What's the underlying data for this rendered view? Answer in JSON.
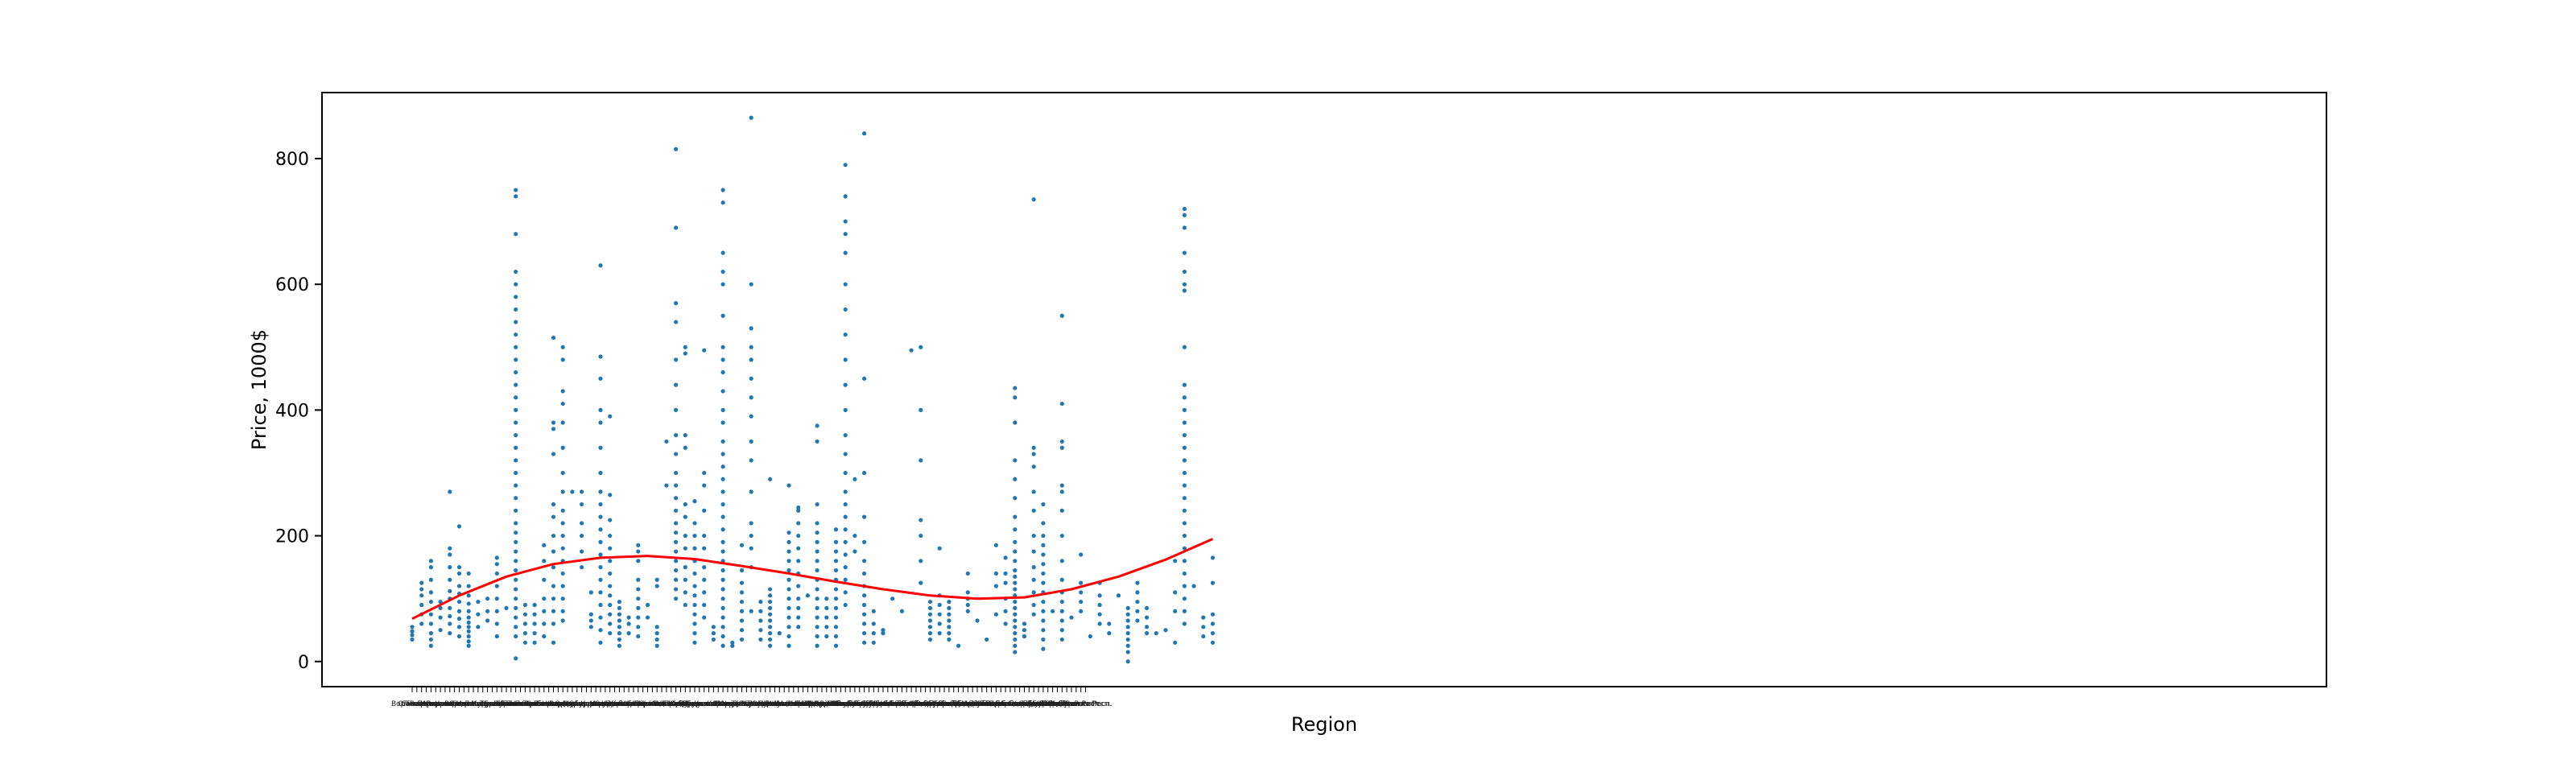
{
  "chart_data": {
    "type": "scatter",
    "title": "",
    "xlabel": "Region",
    "ylabel": "Price, 1000$",
    "ylim": [
      -40,
      905
    ],
    "yticks": [
      0,
      200,
      400,
      600,
      800
    ],
    "grid": false,
    "legend": "none",
    "point_color": "#1f77b4",
    "trend_color": "#ff0000",
    "category_labels": [
      "Омская",
      "Воронежская",
      "Самарская",
      "Тюменская",
      "Ростовская",
      "Пермская",
      "Иркутская",
      "Кемеровская",
      "Саратовская",
      "Волгоградская",
      "Ульяновская",
      "Рязанская",
      "Тверская",
      "Ярославская",
      "Московская",
      "Липецкая",
      "Курская",
      "Калужская",
      "Тульская",
      "Брянская",
      "Челябинская",
      "Томская",
      "Курганская",
      "Ивановская",
      "Пензенская",
      "Тамбовская",
      "Псковская",
      "Новосибирская",
      "Орловская",
      "Смоленская",
      "Архангельская",
      "Вологодская",
      "Белгородская",
      "Кировская",
      "Нижегородская",
      "Владимирская",
      "Оренбургская",
      "Мурманская",
      "Ленинградская",
      "Свердловская",
      "Астраханская",
      "Костромская",
      "Амурская",
      "Магаданская",
      "Сахалинская",
      "Камчатский",
      "Приморский",
      "Хабаровский",
      "Красноярский",
      "Алтайский",
      "Забайкальский",
      "Пермский",
      "Ставропольский",
      "Краснодарский",
      "Москва",
      "Санкт-Петербург",
      "Севастополь",
      "Крым",
      "Адыгея",
      "Башкортостан",
      "Бурятия",
      "Дагестан",
      "Ингушетия",
      "Кабардино-Балкария",
      "Калмыкия",
      "Карачаево-Черкесия",
      "Карелия",
      "Коми",
      "Марий Эл",
      "Мордовия",
      "Саха (Якутия)",
      "Северная Осетия",
      "Татарстан",
      "Тыва",
      "Удмуртия",
      "Хакасия",
      "Чечня",
      "Чувашия",
      "Алтай",
      "Еврейская АО",
      "Ненецкий АО",
      "Ханты-Мансийский АО",
      "Чукотский АО",
      "Ямало-Ненецкий АО",
      "Калининградская",
      "Новгородская",
      "Кировская обл.",
      "Тверская обл.",
      "Пензенская обл.",
      "Липецкая обл.",
      "Рязанская обл.",
      "Брянская обл.",
      "Курганская обл.",
      "Омская обл.",
      "Томская обл.",
      "Амурская обл.",
      "Ивановская обл.",
      "Владимирская обл.",
      "Тульская обл.",
      "Калужская обл.",
      "Орловская обл.",
      "Курская обл.",
      "Смоленская обл.",
      "Псковская обл.",
      "Мурманская обл.",
      "Вологодская обл.",
      "Костромская обл.",
      "Ярославская обл.",
      "Тамбовская обл.",
      "Белгородская обл.",
      "Саратовская обл.",
      "Ульяновская обл.",
      "Самарская обл.",
      "Оренбургская обл.",
      "Астраханская обл.",
      "Волгоградская обл.",
      "Воронежская обл.",
      "Ростовская обл.",
      "Нижегородская обл.",
      "Челябинская обл.",
      "Свердловская обл.",
      "Тюменская обл.",
      "Кемеровская обл.",
      "Иркутская обл.",
      "Новосибирская обл.",
      "Архангельская обл.",
      "Магаданская обл.",
      "Сахалинская обл.",
      "Ленинградская обл.",
      "Московская обл.",
      "Еврейская АО обл.",
      "Калининградская обл.",
      "Новгородская обл.",
      "Хакасия Респ.",
      "Якутия Респ.",
      "Тыва Респ.",
      "Удмуртия Респ.",
      "Чувашия Респ.",
      "Коми Респ.",
      "Карелия Респ.",
      "Мордовия Респ.",
      "Адыгея Респ.",
      "Калмыкия Респ.",
      "Бурятия Респ."
    ],
    "columns": [
      {
        "i": 0,
        "y": [
          35,
          42,
          48,
          55
        ]
      },
      {
        "i": 2,
        "y": [
          60,
          75,
          90,
          105,
          115,
          125
        ]
      },
      {
        "i": 4,
        "y": [
          25,
          35,
          45,
          60,
          75,
          95,
          110,
          130,
          150,
          160
        ]
      },
      {
        "i": 6,
        "y": [
          50,
          70,
          85,
          95
        ]
      },
      {
        "i": 8,
        "y": [
          45,
          60,
          72,
          85,
          100,
          112,
          130,
          150,
          170,
          180,
          270
        ]
      },
      {
        "i": 10,
        "y": [
          40,
          55,
          68,
          80,
          95,
          108,
          120,
          140,
          150,
          215
        ]
      },
      {
        "i": 12,
        "y": [
          25,
          32,
          40,
          48,
          55,
          62,
          70,
          80,
          92,
          105,
          120,
          140
        ]
      },
      {
        "i": 14,
        "y": [
          55,
          75,
          95
        ]
      },
      {
        "i": 16,
        "y": [
          65,
          80,
          100
        ]
      },
      {
        "i": 18,
        "y": [
          40,
          60,
          80,
          100,
          120,
          140,
          155,
          165
        ]
      },
      {
        "i": 20,
        "y": [
          85
        ]
      },
      {
        "i": 22,
        "y": [
          5,
          40,
          55,
          70,
          85,
          100,
          115,
          130,
          145,
          160,
          175,
          190,
          205,
          220,
          240,
          260,
          280,
          300,
          320,
          340,
          360,
          380,
          400,
          420,
          440,
          460,
          480,
          500,
          520,
          540,
          560,
          580,
          600,
          620,
          680,
          740,
          750
        ]
      },
      {
        "i": 24,
        "y": [
          30,
          45,
          60,
          75,
          90
        ]
      },
      {
        "i": 26,
        "y": [
          30,
          45,
          60,
          75,
          90
        ]
      },
      {
        "i": 28,
        "y": [
          40,
          60,
          80,
          100,
          130,
          160,
          185
        ]
      },
      {
        "i": 30,
        "y": [
          30,
          60,
          80,
          100,
          120,
          150,
          175,
          200,
          230,
          250,
          330,
          370,
          380,
          515
        ]
      },
      {
        "i": 32,
        "y": [
          65,
          80,
          100,
          120,
          140,
          160,
          180,
          200,
          220,
          240,
          270,
          300,
          340,
          380,
          410,
          430,
          480,
          500
        ]
      },
      {
        "i": 34,
        "y": [
          270
        ]
      },
      {
        "i": 36,
        "y": [
          150,
          175,
          200,
          220,
          250,
          270
        ]
      },
      {
        "i": 38,
        "y": [
          55,
          65,
          75,
          110
        ]
      },
      {
        "i": 40,
        "y": [
          30,
          50,
          70,
          90,
          110,
          130,
          150,
          170,
          190,
          210,
          230,
          250,
          270,
          300,
          340,
          380,
          400,
          450,
          485,
          630
        ]
      },
      {
        "i": 42,
        "y": [
          45,
          60,
          75,
          90,
          105,
          120,
          140,
          160,
          180,
          200,
          225,
          265,
          390
        ]
      },
      {
        "i": 44,
        "y": [
          25,
          35,
          45,
          55,
          65,
          75,
          85,
          95
        ]
      },
      {
        "i": 46,
        "y": [
          45,
          60,
          70
        ]
      },
      {
        "i": 48,
        "y": [
          40,
          55,
          70,
          85,
          100,
          115,
          130,
          160,
          175,
          185
        ]
      },
      {
        "i": 50,
        "y": [
          70,
          90
        ]
      },
      {
        "i": 52,
        "y": [
          25,
          35,
          45,
          55,
          120,
          130
        ]
      },
      {
        "i": 54,
        "y": [
          280,
          350
        ]
      },
      {
        "i": 56,
        "y": [
          100,
          115,
          130,
          145,
          160,
          175,
          190,
          205,
          220,
          240,
          260,
          280,
          300,
          330,
          360,
          400,
          440,
          480,
          540,
          570,
          690,
          815
        ]
      },
      {
        "i": 58,
        "y": [
          90,
          110,
          130,
          150,
          180,
          200,
          230,
          250,
          340,
          360,
          490,
          500
        ]
      },
      {
        "i": 60,
        "y": [
          30,
          45,
          60,
          75,
          90,
          105,
          120,
          140,
          160,
          180,
          200,
          220,
          255
        ]
      },
      {
        "i": 62,
        "y": [
          70,
          90,
          110,
          130,
          150,
          180,
          200,
          240,
          280,
          300,
          495
        ]
      },
      {
        "i": 64,
        "y": [
          35,
          45,
          55
        ]
      },
      {
        "i": 66,
        "y": [
          25,
          40,
          55,
          70,
          85,
          100,
          115,
          130,
          145,
          160,
          175,
          190,
          210,
          230,
          250,
          270,
          290,
          310,
          330,
          350,
          380,
          400,
          430,
          460,
          480,
          500,
          550,
          600,
          620,
          650,
          730,
          750
        ]
      },
      {
        "i": 68,
        "y": [
          25,
          30
        ]
      },
      {
        "i": 70,
        "y": [
          35,
          50,
          65,
          80,
          95,
          110,
          125,
          145,
          185
        ]
      },
      {
        "i": 72,
        "y": [
          80,
          150,
          180,
          200,
          220,
          270,
          320,
          350,
          390,
          420,
          450,
          480,
          500,
          530,
          600,
          865
        ]
      },
      {
        "i": 74,
        "y": [
          35,
          50,
          65,
          80,
          95
        ]
      },
      {
        "i": 76,
        "y": [
          25,
          35,
          45,
          55,
          65,
          75,
          85,
          95,
          105,
          115,
          290
        ]
      },
      {
        "i": 78,
        "y": [
          45
        ]
      },
      {
        "i": 80,
        "y": [
          25,
          40,
          55,
          70,
          85,
          100,
          115,
          130,
          145,
          160,
          175,
          190,
          205,
          280
        ]
      },
      {
        "i": 82,
        "y": [
          55,
          70,
          85,
          100,
          120,
          140,
          160,
          180,
          200,
          220,
          240,
          245
        ]
      },
      {
        "i": 84,
        "y": [
          105
        ]
      },
      {
        "i": 86,
        "y": [
          25,
          40,
          55,
          70,
          85,
          100,
          115,
          130,
          145,
          160,
          175,
          190,
          205,
          220,
          250,
          350,
          375
        ]
      },
      {
        "i": 88,
        "y": [
          40,
          55,
          70,
          85,
          100
        ]
      },
      {
        "i": 90,
        "y": [
          25,
          40,
          55,
          70,
          85,
          100,
          115,
          130,
          145,
          160,
          175,
          190,
          210
        ]
      },
      {
        "i": 92,
        "y": [
          90,
          110,
          130,
          150,
          170,
          190,
          210,
          230,
          250,
          270,
          300,
          330,
          360,
          400,
          440,
          480,
          520,
          560,
          600,
          650,
          680,
          700,
          740,
          790
        ]
      },
      {
        "i": 94,
        "y": [
          175,
          200,
          290
        ]
      },
      {
        "i": 96,
        "y": [
          30,
          45,
          60,
          75,
          90,
          105,
          120,
          140,
          160,
          190,
          230,
          300,
          450,
          840
        ]
      },
      {
        "i": 98,
        "y": [
          30,
          45,
          60,
          80
        ]
      },
      {
        "i": 100,
        "y": [
          45,
          50
        ]
      },
      {
        "i": 102,
        "y": [
          100
        ]
      },
      {
        "i": 104,
        "y": [
          80
        ]
      },
      {
        "i": 106,
        "y": [
          495
        ]
      },
      {
        "i": 108,
        "y": [
          125,
          160,
          200,
          225,
          320,
          400,
          500
        ]
      },
      {
        "i": 110,
        "y": [
          35,
          45,
          55,
          65,
          75,
          85,
          95
        ]
      },
      {
        "i": 112,
        "y": [
          45,
          60,
          75,
          90,
          105,
          180
        ]
      },
      {
        "i": 114,
        "y": [
          35,
          45,
          55,
          65,
          75,
          85,
          95
        ]
      },
      {
        "i": 116,
        "y": [
          25
        ]
      },
      {
        "i": 118,
        "y": [
          80,
          90,
          100,
          110,
          140
        ]
      },
      {
        "i": 120,
        "y": [
          65
        ]
      },
      {
        "i": 122,
        "y": [
          35
        ]
      },
      {
        "i": 124,
        "y": [
          75,
          120,
          140,
          185
        ]
      },
      {
        "i": 126,
        "y": [
          60,
          80,
          100,
          125,
          140,
          165
        ]
      },
      {
        "i": 128,
        "y": [
          15,
          25,
          35,
          45,
          55,
          65,
          75,
          85,
          95,
          105,
          115,
          125,
          135,
          145,
          160,
          175,
          190,
          210,
          230,
          260,
          290,
          320,
          380,
          420,
          435
        ]
      },
      {
        "i": 130,
        "y": [
          40,
          50,
          60
        ]
      },
      {
        "i": 132,
        "y": [
          75,
          90,
          110,
          130,
          150,
          175,
          200,
          240,
          270,
          310,
          330,
          340,
          735
        ]
      },
      {
        "i": 134,
        "y": [
          20,
          35,
          50,
          65,
          80,
          95,
          110,
          125,
          140,
          155,
          170,
          185,
          200,
          220,
          250
        ]
      },
      {
        "i": 136,
        "y": [
          80
        ]
      },
      {
        "i": 138,
        "y": [
          35,
          50,
          65,
          80,
          95,
          110,
          130,
          160,
          200,
          240,
          270,
          280,
          340,
          350,
          410,
          550
        ]
      },
      {
        "i": 140,
        "y": [
          70
        ]
      },
      {
        "i": 142,
        "y": [
          80,
          95,
          110,
          125,
          170
        ]
      },
      {
        "i": 144,
        "y": [
          40
        ]
      },
      {
        "i": 146,
        "y": [
          60,
          75,
          90,
          105,
          125
        ]
      },
      {
        "i": 148,
        "y": [
          45,
          60
        ]
      },
      {
        "i": 150,
        "y": [
          105
        ]
      },
      {
        "i": 152,
        "y": [
          0,
          15,
          25,
          35,
          45,
          55,
          65,
          75,
          85
        ]
      },
      {
        "i": 154,
        "y": [
          65,
          80,
          95,
          110,
          125
        ]
      },
      {
        "i": 156,
        "y": [
          45,
          55,
          70,
          85
        ]
      },
      {
        "i": 158,
        "y": [
          45
        ]
      },
      {
        "i": 160,
        "y": [
          50
        ]
      },
      {
        "i": 162,
        "y": [
          30,
          80,
          110,
          160
        ]
      },
      {
        "i": 164,
        "y": [
          60,
          80,
          100,
          120,
          140,
          160,
          180,
          200,
          220,
          240,
          260,
          280,
          300,
          320,
          340,
          360,
          380,
          400,
          420,
          440,
          500,
          590,
          600,
          620,
          650,
          690,
          710,
          720
        ]
      },
      {
        "i": 166,
        "y": [
          120
        ]
      },
      {
        "i": 168,
        "y": [
          40,
          55,
          70
        ]
      },
      {
        "i": 170,
        "y": [
          30,
          45,
          60,
          75,
          125,
          165
        ]
      }
    ],
    "trend_line": {
      "x": [
        0,
        10,
        20,
        30,
        40,
        50,
        60,
        70,
        80,
        90,
        100,
        110,
        120,
        130,
        140,
        150,
        160,
        170
      ],
      "y": [
        68,
        105,
        135,
        155,
        165,
        168,
        163,
        152,
        140,
        127,
        115,
        105,
        100,
        102,
        115,
        135,
        162,
        195
      ]
    }
  }
}
